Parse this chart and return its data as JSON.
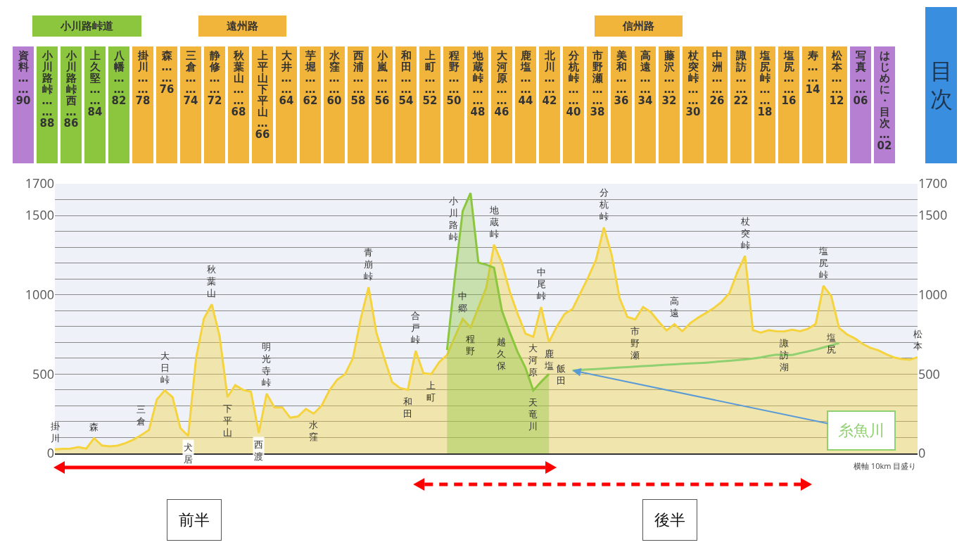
{
  "chart_data": [
    {
      "type": "other",
      "title": "目次",
      "categories": [
        "資料……90",
        "小川路峠……88",
        "小川路峠西…86",
        "上久堅……84",
        "八幡……82",
        "掛川……78",
        "森……76",
        "三倉……74",
        "静修……72",
        "秋葉山……68",
        "上平山下平山…66",
        "大井……64",
        "芋堀……62",
        "水窪……60",
        "西浦……58",
        "小嵐……56",
        "和田……54",
        "上町……52",
        "程野……50",
        "地蔵峠……48",
        "大河原……46",
        "鹿塩……44",
        "北川……42",
        "分杭峠……40",
        "市野瀬……38",
        "美和……36",
        "高遠……34",
        "藤沢……32",
        "杖突峠……30",
        "中洲……26",
        "諏訪……22",
        "塩尻峠……18",
        "塩尻……16",
        "寿……14",
        "松本……12",
        "写真……06",
        "はじめに・目次…02"
      ],
      "colors": [
        "#b67fd2",
        "#8cc63f",
        "#8cc63f",
        "#8cc63f",
        "#8cc63f",
        "#f2b53c",
        "#f2b53c",
        "#f2b53c",
        "#f2b53c",
        "#f2b53c",
        "#f2b53c",
        "#f2b53c",
        "#f2b53c",
        "#f2b53c",
        "#f2b53c",
        "#f2b53c",
        "#f2b53c",
        "#f2b53c",
        "#f2b53c",
        "#f2b53c",
        "#f2b53c",
        "#f2b53c",
        "#f2b53c",
        "#f2b53c",
        "#f2b53c",
        "#f2b53c",
        "#f2b53c",
        "#f2b53c",
        "#f2b53c",
        "#f2b53c",
        "#f2b53c",
        "#f2b53c",
        "#f2b53c",
        "#f2b53c",
        "#f2b53c",
        "#b67fd2",
        "#b67fd2"
      ],
      "annotations": [
        "小川路峠道",
        "遠州路",
        "信州路"
      ]
    },
    {
      "type": "area",
      "categories": [
        null,
        null,
        null,
        null,
        null,
        null,
        null,
        null,
        null,
        null,
        null,
        null,
        null,
        null,
        null,
        null,
        null,
        null,
        null,
        null,
        null,
        null,
        null,
        null,
        null,
        null,
        null,
        null,
        null,
        null,
        null,
        null,
        null,
        null,
        null,
        null,
        null,
        null,
        null,
        null,
        null,
        null,
        null,
        null,
        null,
        null,
        null,
        null,
        null,
        null,
        null,
        null,
        null,
        null,
        null,
        null,
        null,
        null,
        null,
        null,
        null,
        null,
        null,
        null,
        null,
        null,
        null,
        null,
        null,
        null,
        null,
        null,
        null,
        null,
        null,
        null,
        null,
        null,
        null,
        null,
        null,
        null,
        null,
        null,
        null,
        null,
        null,
        null,
        null,
        null,
        null,
        null,
        null,
        null,
        null,
        null,
        null,
        null,
        null,
        null,
        null,
        null,
        null,
        null,
        null,
        null,
        null,
        null,
        null,
        null,
        null
      ],
      "ylim": [
        0,
        1700
      ],
      "yticks": [
        0,
        {
          "value": 100,
          "label": null
        },
        {
          "value": 200,
          "label": null
        },
        {
          "value": 300,
          "label": null
        },
        {
          "value": 400,
          "label": null
        },
        500,
        {
          "value": 600,
          "label": null
        },
        {
          "value": 700,
          "label": null
        },
        {
          "value": 800,
          "label": null
        },
        {
          "value": 900,
          "label": null
        },
        1000,
        {
          "value": 1100,
          "label": null
        },
        {
          "value": 1200,
          "label": null
        },
        {
          "value": 1300,
          "label": null
        },
        {
          "value": 1400,
          "label": null
        },
        1500,
        {
          "value": 1600,
          "label": null
        },
        1700
      ],
      "y2lim": [
        0,
        1700
      ],
      "y2ticks": [
        0,
        500,
        1000,
        1500,
        1700
      ],
      "grid": "y",
      "tick_labels": "y",
      "marker": "none",
      "series": [
        {
          "type": "area",
          "color": "#f5d33f",
          "values": [
            25,
            29,
            30,
            40,
            30,
            96,
            50,
            44,
            49,
            65,
            86,
            115,
            148,
            340,
            397,
            355,
            160,
            110,
            600,
            850,
            940,
            740,
            355,
            430,
            400,
            388,
            129,
            376,
            290,
            290,
            225,
            233,
            280,
            251,
            300,
            397,
            465,
            500,
            600,
            850,
            1048,
            760,
            600,
            450,
            412,
            401,
            647,
            505,
            501,
            575,
            620,
            735,
            848,
            794,
            920,
            1044,
            1316,
            1200,
            1020,
            880,
            755,
            735,
            923,
            702,
            800,
            880,
            910,
            1010,
            1110,
            1220,
            1424,
            1250,
            980,
            860,
            845,
            923,
            890,
            830,
            775,
            815,
            770,
            820,
            855,
            885,
            915,
            955,
            1010,
            1140,
            1245,
            777,
            762,
            777,
            770,
            769,
            780,
            770,
            785,
            815,
            1057,
            990,
            790,
            750,
            725,
            690,
            665,
            650,
            625,
            605,
            595,
            590,
            606
          ],
          "value_labels": [
            "掛川",
            null,
            null,
            null,
            null,
            "森",
            null,
            null,
            null,
            null,
            null,
            null,
            "三倉",
            null,
            "大日峠",
            null,
            null,
            "犬居",
            null,
            null,
            "秋葉山",
            null,
            "下平山",
            null,
            null,
            null,
            "西渡",
            "明光寺峠",
            null,
            null,
            null,
            null,
            null,
            "水窪",
            null,
            null,
            null,
            null,
            null,
            null,
            "青崩峠",
            null,
            null,
            null,
            null,
            "和田",
            "合戸峠",
            null,
            "上町",
            null,
            null,
            null,
            "中郷",
            "程野",
            null,
            null,
            "地蔵峠",
            null,
            null,
            null,
            null,
            "大河原",
            "中尾峠",
            "鹿塩",
            null,
            null,
            null,
            null,
            null,
            null,
            "分杭峠",
            null,
            null,
            null,
            "市野瀬",
            null,
            null,
            null,
            null,
            "高遠",
            null,
            null,
            null,
            null,
            null,
            null,
            null,
            null,
            "杖突峠",
            null,
            null,
            null,
            null,
            "諏訪湖",
            null,
            null,
            null,
            null,
            "塩尻峠",
            null,
            "塩尻",
            null,
            null,
            null,
            null,
            null,
            null,
            null,
            null,
            null,
            "松本"
          ]
        },
        {
          "type": "area",
          "color": "#8cc63f",
          "values": [
            null,
            null,
            null,
            null,
            null,
            null,
            null,
            null,
            null,
            null,
            null,
            null,
            null,
            null,
            null,
            null,
            null,
            null,
            null,
            null,
            null,
            null,
            null,
            null,
            null,
            null,
            null,
            null,
            null,
            null,
            null,
            null,
            null,
            null,
            null,
            null,
            null,
            null,
            null,
            null,
            null,
            null,
            null,
            null,
            null,
            null,
            null,
            null,
            null,
            null,
            652,
            1110,
            1529,
            1642,
            1203,
            1190,
            1170,
            900,
            764,
            640,
            540,
            397,
            451,
            501,
            null,
            null,
            null,
            null,
            null,
            null,
            null,
            null,
            null,
            null,
            null,
            null,
            null,
            null,
            null,
            null,
            null,
            null,
            null,
            null,
            null,
            null,
            null,
            null,
            null,
            null,
            null,
            null,
            null,
            null,
            null,
            null,
            null,
            null,
            null,
            null,
            null,
            null,
            null,
            null,
            null,
            null,
            null,
            null,
            null,
            null,
            null
          ],
          "value_labels": [
            null,
            null,
            null,
            null,
            null,
            null,
            null,
            null,
            null,
            null,
            null,
            null,
            null,
            null,
            null,
            null,
            null,
            null,
            null,
            null,
            null,
            null,
            null,
            null,
            null,
            null,
            null,
            null,
            null,
            null,
            null,
            null,
            null,
            null,
            null,
            null,
            null,
            null,
            null,
            null,
            null,
            null,
            null,
            null,
            null,
            null,
            null,
            null,
            null,
            null,
            null,
            null,
            null,
            "小川路峠",
            null,
            null,
            null,
            null,
            "越久保",
            null,
            null,
            "天竜川",
            null,
            "飯田",
            null,
            null,
            null,
            null,
            null,
            null,
            null,
            null,
            null,
            null,
            null,
            null,
            null,
            null,
            null,
            null,
            null,
            null,
            null,
            null,
            null,
            null,
            null,
            null,
            null,
            null,
            null,
            null,
            null,
            null,
            null,
            null,
            null,
            null,
            null,
            null,
            null,
            null,
            null,
            null,
            null,
            null,
            null,
            null,
            null,
            null,
            null
          ]
        },
        {
          "type": "line",
          "name": "糸魚川",
          "color": "#8fd070",
          "values": [
            null,
            null,
            null,
            null,
            null,
            null,
            null,
            null,
            null,
            null,
            null,
            null,
            null,
            null,
            null,
            null,
            null,
            null,
            null,
            null,
            null,
            null,
            null,
            null,
            null,
            null,
            null,
            null,
            null,
            null,
            null,
            null,
            null,
            null,
            null,
            null,
            null,
            null,
            null,
            null,
            null,
            null,
            null,
            null,
            null,
            null,
            null,
            null,
            null,
            null,
            null,
            null,
            null,
            null,
            null,
            null,
            null,
            null,
            null,
            null,
            null,
            null,
            null,
            null,
            null,
            null,
            523,
            526,
            529,
            532,
            535,
            538,
            541,
            544,
            547,
            550,
            553,
            556,
            559,
            562,
            565,
            567,
            569,
            572,
            576,
            580,
            584,
            588,
            593,
            598,
            605,
            615,
            622,
            620,
            620,
            632,
            643,
            654,
            668,
            682,
            695,
            null,
            null,
            null,
            null,
            null,
            null,
            null,
            null,
            null,
            null
          ]
        }
      ],
      "annotations": [
        "前半",
        "後半",
        "横軸 10km 目盛り"
      ]
    }
  ]
}
